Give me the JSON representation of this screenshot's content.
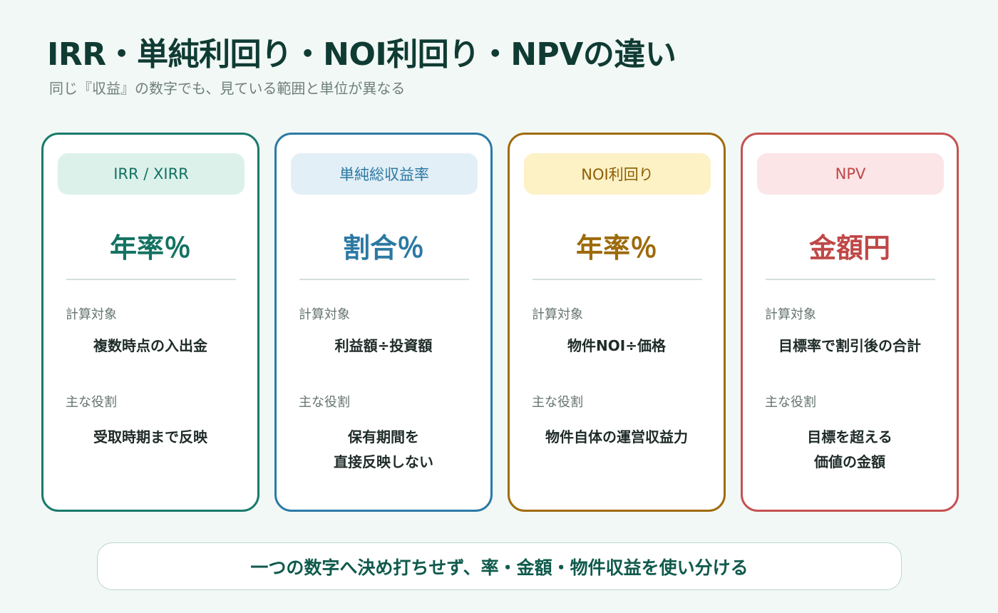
{
  "header": {
    "title": "IRR・単純利回り・NOI利回り・NPVの違い",
    "subtitle": "同じ『収益』の数字でも、見ている範囲と単位が異なる"
  },
  "cards": [
    {
      "label": "IRR / XIRR",
      "unit": "年率％",
      "target_heading": "計算対象",
      "target": "複数時点の入出金",
      "role_heading": "主な役割",
      "role": "受取時期まで反映",
      "colors": {
        "accent": "#1a7a6c",
        "text": "#137262",
        "pill_bg": "#dcf1ea",
        "pill_text": "#137262"
      }
    },
    {
      "label": "単純総収益率",
      "unit": "割合％",
      "target_heading": "計算対象",
      "target": "利益額÷投資額",
      "role_heading": "主な役割",
      "role": "保有期間を\n直接反映しない",
      "colors": {
        "accent": "#2d7aa6",
        "text": "#2b78a3",
        "pill_bg": "#e2eff6",
        "pill_text": "#2b78a3"
      }
    },
    {
      "label": "NOI利回り",
      "unit": "年率％",
      "target_heading": "計算対象",
      "target": "物件NOI÷価格",
      "role_heading": "主な役割",
      "role": "物件自体の運営収益力",
      "colors": {
        "accent": "#a06c0c",
        "text": "#9c6a0a",
        "pill_bg": "#fdf1c6",
        "pill_text": "#8d5e05"
      }
    },
    {
      "label": "NPV",
      "unit": "金額円",
      "target_heading": "計算対象",
      "target": "目標率で割引後の合計",
      "role_heading": "主な役割",
      "role": "目標を超える\n価値の金額",
      "colors": {
        "accent": "#c65252",
        "text": "#c04747",
        "pill_bg": "#fbe5e6",
        "pill_text": "#c04747"
      }
    }
  ],
  "footer": {
    "text": "一つの数字へ決め打ちせず、率・金額・物件収益を使い分ける"
  }
}
